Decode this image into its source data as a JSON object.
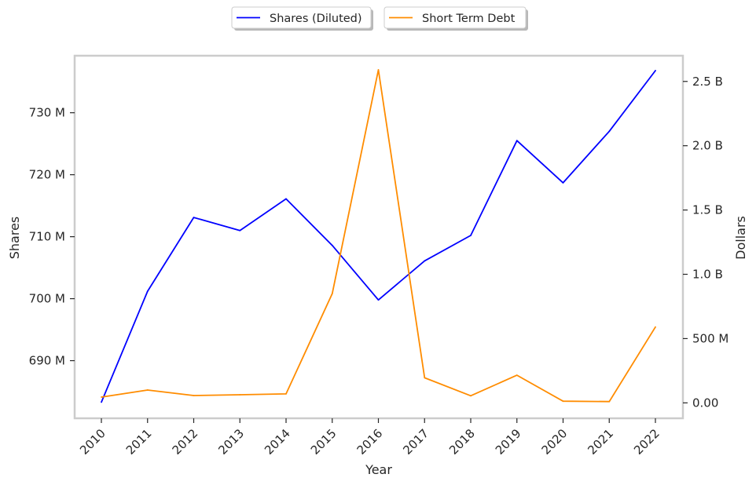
{
  "chart_data": {
    "type": "line",
    "categories": [
      "2010",
      "2011",
      "2012",
      "2013",
      "2014",
      "2015",
      "2016",
      "2017",
      "2018",
      "2019",
      "2020",
      "2021",
      "2022"
    ],
    "xlabel": "Year",
    "series": [
      {
        "name": "Shares (Diluted)",
        "axis": "left",
        "color": "#0000ff",
        "values": [
          683.3,
          701.2,
          713.1,
          711.0,
          716.1,
          708.6,
          699.8,
          706.1,
          710.2,
          725.5,
          718.7,
          727.0,
          736.8
        ]
      },
      {
        "name": "Short Term Debt",
        "axis": "right",
        "color": "#ff8c00",
        "values": [
          0.045,
          0.1,
          0.057,
          0.063,
          0.07,
          0.85,
          2.59,
          0.195,
          0.055,
          0.215,
          0.013,
          0.01,
          0.59
        ]
      }
    ],
    "y_left": {
      "label": "Shares",
      "lim": [
        680.7,
        739.2
      ],
      "ticks": [
        690,
        700,
        710,
        720,
        730
      ],
      "tick_labels": [
        "690 M",
        "700 M",
        "710 M",
        "720 M",
        "730 M"
      ]
    },
    "y_right": {
      "label": "Dollars",
      "unit": "billions",
      "lim": [
        -0.12,
        2.7
      ],
      "ticks": [
        0,
        0.5,
        1.0,
        1.5,
        2.0,
        2.5
      ],
      "tick_labels": [
        "0.00",
        "500 M",
        "1.0 B",
        "1.5 B",
        "2.0 B",
        "2.5 B"
      ]
    },
    "legend_position": "top-center, outside plot",
    "grid": false
  }
}
